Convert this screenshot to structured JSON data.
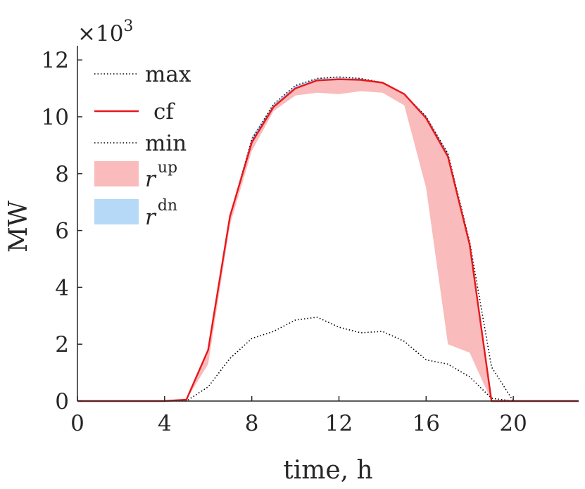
{
  "chart_data": {
    "type": "area",
    "xlabel": "time, h",
    "ylabel": "MW",
    "multiplier_base": "×10",
    "multiplier_exp": "3",
    "xlim": [
      0,
      23
    ],
    "ylim": [
      0,
      12.5
    ],
    "xticks": [
      0,
      4,
      8,
      12,
      16,
      20
    ],
    "yticks": [
      0,
      2,
      4,
      6,
      8,
      10,
      12
    ],
    "x": [
      0,
      1,
      2,
      3,
      4,
      5,
      6,
      7,
      8,
      9,
      10,
      11,
      12,
      13,
      14,
      15,
      16,
      17,
      18,
      19,
      20,
      21,
      22,
      23
    ],
    "series": [
      {
        "name": "max",
        "style": "dotted",
        "color": "#000000",
        "values": [
          0,
          0,
          0,
          0,
          0,
          0.05,
          1.8,
          6.5,
          9.2,
          10.45,
          11.1,
          11.35,
          11.4,
          11.35,
          11.2,
          10.8,
          10.0,
          8.7,
          5.6,
          1.2,
          0,
          0,
          0,
          0
        ]
      },
      {
        "name": "cf",
        "style": "solid",
        "color": "#e8161b",
        "values": [
          0,
          0,
          0,
          0,
          0,
          0.05,
          1.8,
          6.5,
          9.1,
          10.35,
          11.0,
          11.28,
          11.32,
          11.3,
          11.2,
          10.8,
          9.95,
          8.6,
          5.5,
          0,
          0,
          0,
          0,
          0
        ]
      },
      {
        "name": "min",
        "style": "dotted",
        "color": "#000000",
        "values": [
          0,
          0,
          0,
          0,
          0,
          0,
          0.5,
          1.5,
          2.2,
          2.45,
          2.85,
          2.95,
          2.6,
          2.4,
          2.45,
          2.1,
          1.45,
          1.3,
          0.85,
          0.1,
          0,
          0,
          0,
          0
        ]
      },
      {
        "name": "r^up",
        "style": "band",
        "color": "#f9bbbb",
        "values": [
          0,
          0,
          0,
          0,
          0,
          0.05,
          1.3,
          6.2,
          8.8,
          10.2,
          10.75,
          10.85,
          10.8,
          10.9,
          10.85,
          10.4,
          7.5,
          2.0,
          1.7,
          0,
          0,
          0,
          0,
          0
        ]
      },
      {
        "name": "r^dn",
        "style": "band",
        "color": "#b6d9f7",
        "values": [
          0,
          0,
          0,
          0,
          0,
          0.05,
          1.8,
          6.5,
          9.3,
          10.45,
          11.1,
          11.35,
          11.4,
          11.35,
          11.2,
          10.8,
          10.05,
          8.75,
          5.6,
          0,
          0,
          0,
          0,
          0
        ]
      }
    ],
    "legend": {
      "placement": "top-left",
      "entries": [
        {
          "label": "max",
          "kind": "dotted",
          "color": "#000000"
        },
        {
          "label": "cf",
          "kind": "solid",
          "color": "#e8161b"
        },
        {
          "label": "min",
          "kind": "dotted",
          "color": "#000000"
        },
        {
          "label": "r",
          "sup": "up",
          "kind": "patch",
          "color": "#f9bbbb"
        },
        {
          "label": "r",
          "sup": "dn",
          "kind": "patch",
          "color": "#b6d9f7"
        }
      ]
    }
  }
}
